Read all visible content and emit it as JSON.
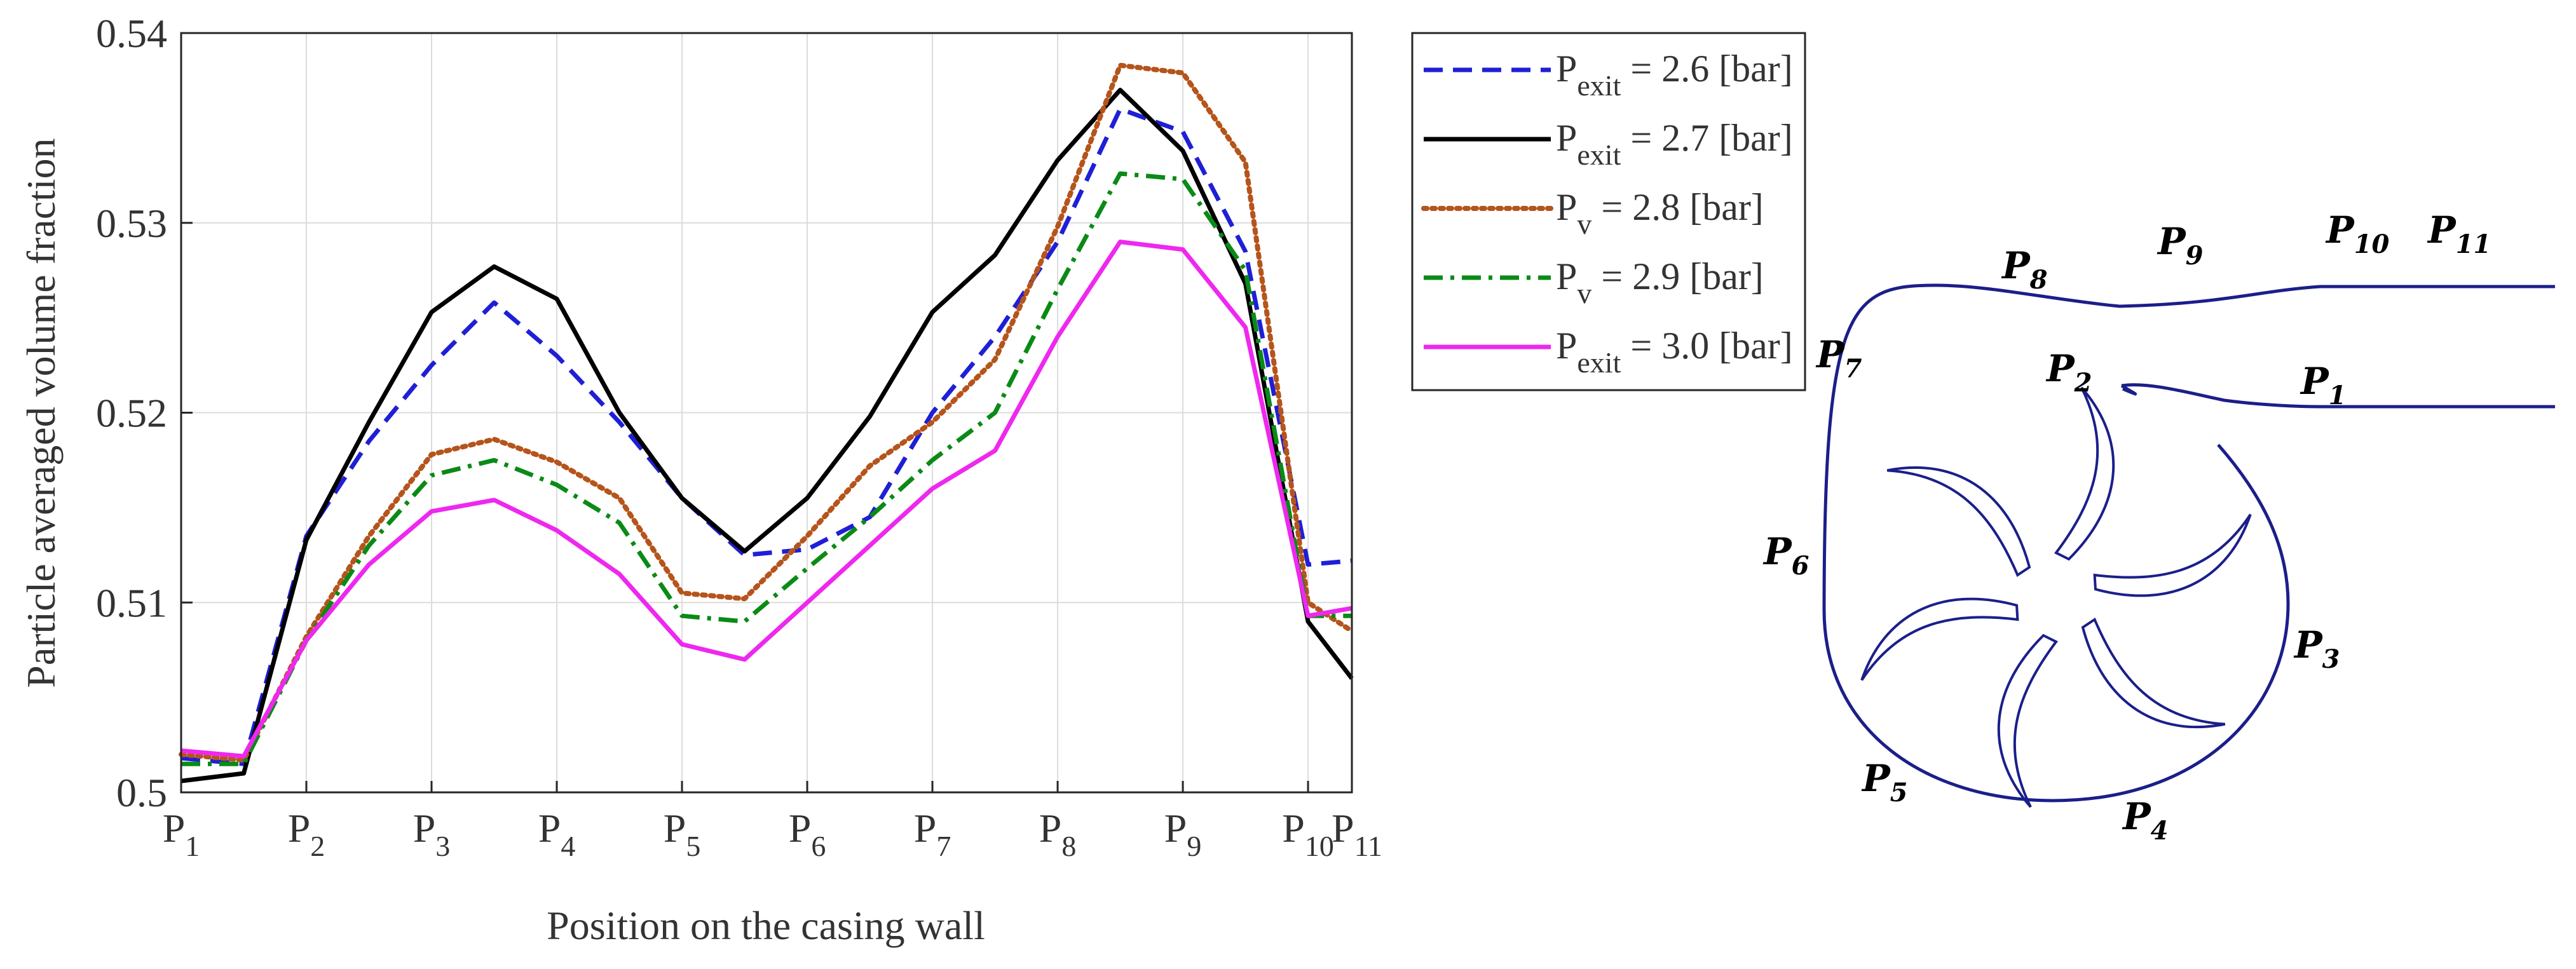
{
  "chart_data": {
    "type": "line",
    "title": "",
    "xlabel": "Position on the casing wall",
    "ylabel": "Particle averaged volume fraction",
    "ylim": [
      0.5,
      0.54
    ],
    "grid": true,
    "legend_position": "outside-right",
    "x_ticks": [
      {
        "pos": 0,
        "main": "P",
        "sub": "1"
      },
      {
        "pos": 1,
        "main": "P",
        "sub": "2"
      },
      {
        "pos": 2,
        "main": "P",
        "sub": "3"
      },
      {
        "pos": 3,
        "main": "P",
        "sub": "4"
      },
      {
        "pos": 4,
        "main": "P",
        "sub": "5"
      },
      {
        "pos": 5,
        "main": "P",
        "sub": "6"
      },
      {
        "pos": 6,
        "main": "P",
        "sub": "7"
      },
      {
        "pos": 7,
        "main": "P",
        "sub": "8"
      },
      {
        "pos": 8,
        "main": "P",
        "sub": "9"
      },
      {
        "pos": 9,
        "main": "P",
        "sub": "10"
      },
      {
        "pos": 9.35,
        "main": "P",
        "sub": "11"
      }
    ],
    "y_ticks": [
      "0.5",
      "0.51",
      "0.52",
      "0.53",
      "0.54"
    ],
    "y_tick_values": [
      0.5,
      0.51,
      0.52,
      0.53,
      0.54
    ],
    "x": [
      0,
      0.5,
      1,
      1.5,
      2,
      2.5,
      3,
      3.5,
      4,
      4.5,
      5,
      5.5,
      6,
      6.5,
      7,
      7.5,
      8,
      8.5,
      9,
      9.35
    ],
    "series": [
      {
        "name": "P_exit = 2.6 [bar]",
        "legend_main": "P",
        "legend_sub": "exit",
        "legend_rest": " = 2.6 [bar]",
        "color": "#1f1fd6",
        "style": "dashed",
        "values": [
          0.5018,
          0.5015,
          0.5135,
          0.5185,
          0.5225,
          0.5258,
          0.523,
          0.5195,
          0.5155,
          0.5125,
          0.5128,
          0.5145,
          0.52,
          0.524,
          0.529,
          0.536,
          0.5348,
          0.5285,
          0.512,
          0.5122
        ]
      },
      {
        "name": "P_exit = 2.7 [bar]",
        "legend_main": "P",
        "legend_sub": "exit",
        "legend_rest": " = 2.7 [bar]",
        "color": "#000000",
        "style": "solid",
        "values": [
          0.5006,
          0.501,
          0.5133,
          0.5195,
          0.5253,
          0.5277,
          0.526,
          0.52,
          0.5155,
          0.5127,
          0.5155,
          0.5198,
          0.5253,
          0.5283,
          0.5333,
          0.537,
          0.5338,
          0.5268,
          0.509,
          0.506
        ]
      },
      {
        "name": "P_v = 2.8 [bar]",
        "legend_main": "P",
        "legend_sub": "v",
        "legend_rest": " = 2.8 [bar]",
        "color": "#b5541b",
        "style": "dotted",
        "values": [
          0.502,
          0.5017,
          0.5082,
          0.5135,
          0.5178,
          0.5186,
          0.5174,
          0.5155,
          0.5105,
          0.5102,
          0.5135,
          0.5172,
          0.5195,
          0.5228,
          0.5298,
          0.5383,
          0.5379,
          0.5332,
          0.51,
          0.5085
        ]
      },
      {
        "name": "P_v = 2.9 [bar]",
        "legend_main": "P",
        "legend_sub": "v",
        "legend_rest": " = 2.9 [bar]",
        "color": "#0a8a16",
        "style": "dashdot",
        "values": [
          0.5015,
          0.5015,
          0.508,
          0.513,
          0.5167,
          0.5175,
          0.5162,
          0.5142,
          0.5093,
          0.509,
          0.5118,
          0.5145,
          0.5175,
          0.52,
          0.5265,
          0.5326,
          0.5323,
          0.5275,
          0.5093,
          0.5093
        ]
      },
      {
        "name": "P_exit = 3.0 [bar]",
        "legend_main": "P",
        "legend_sub": "exit",
        "legend_rest": " = 3.0 [bar]",
        "color": "#ee28ee",
        "style": "solid",
        "values": [
          0.5022,
          0.5019,
          0.508,
          0.512,
          0.5148,
          0.5154,
          0.5138,
          0.5115,
          0.5078,
          0.507,
          0.51,
          0.513,
          0.516,
          0.518,
          0.524,
          0.529,
          0.5286,
          0.5245,
          0.5093,
          0.5097
        ]
      }
    ]
  },
  "diagram": {
    "labels": [
      {
        "id": "p1",
        "main": "P",
        "sub": "1"
      },
      {
        "id": "p2",
        "main": "P",
        "sub": "2"
      },
      {
        "id": "p3",
        "main": "P",
        "sub": "3"
      },
      {
        "id": "p4",
        "main": "P",
        "sub": "4"
      },
      {
        "id": "p5",
        "main": "P",
        "sub": "5"
      },
      {
        "id": "p6",
        "main": "P",
        "sub": "6"
      },
      {
        "id": "p7",
        "main": "P",
        "sub": "7"
      },
      {
        "id": "p8",
        "main": "P",
        "sub": "8"
      },
      {
        "id": "p9",
        "main": "P",
        "sub": "9"
      },
      {
        "id": "p10",
        "main": "P",
        "sub": "10"
      },
      {
        "id": "p11",
        "main": "P",
        "sub": "11"
      }
    ],
    "line_color": "#1b1f8a"
  }
}
